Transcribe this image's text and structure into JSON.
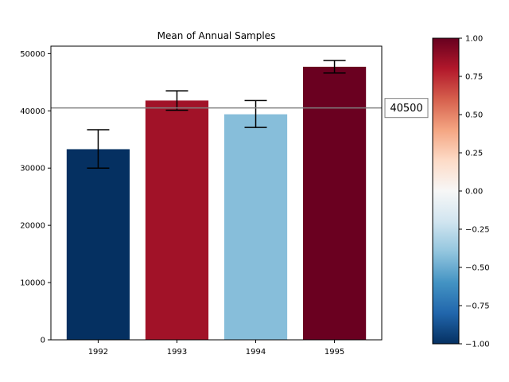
{
  "chart_data": {
    "type": "bar",
    "title": "Mean of Annual Samples",
    "xlabel": "",
    "ylabel": "",
    "categories": [
      "1992",
      "1993",
      "1994",
      "1995"
    ],
    "values": [
      33300,
      41800,
      39400,
      47700
    ],
    "error_low": [
      30000,
      40100,
      37100,
      46600
    ],
    "error_high": [
      36700,
      43500,
      41800,
      48800
    ],
    "bar_colors": [
      "#053061",
      "#a11228",
      "#87beda",
      "#6a0020"
    ],
    "ylim": [
      0,
      51300
    ],
    "yticks": [
      "0",
      "10000",
      "20000",
      "30000",
      "40000",
      "50000"
    ],
    "grid": false,
    "reference_line": {
      "value": 40500,
      "label": "40500",
      "color": "#808080"
    },
    "colorbar": {
      "cmap": "RdBu_r",
      "range": [
        -1.0,
        1.0
      ],
      "ticks": [
        "1.00",
        "0.75",
        "0.50",
        "0.25",
        "0.00",
        "−0.25",
        "−0.50",
        "−0.75",
        "−1.00"
      ],
      "colors": [
        "#053061",
        "#2166ac",
        "#4393c3",
        "#92c5de",
        "#d1e5f0",
        "#f7f7f7",
        "#fddbc7",
        "#f4a582",
        "#d6604d",
        "#b2182b",
        "#67001f"
      ]
    }
  }
}
